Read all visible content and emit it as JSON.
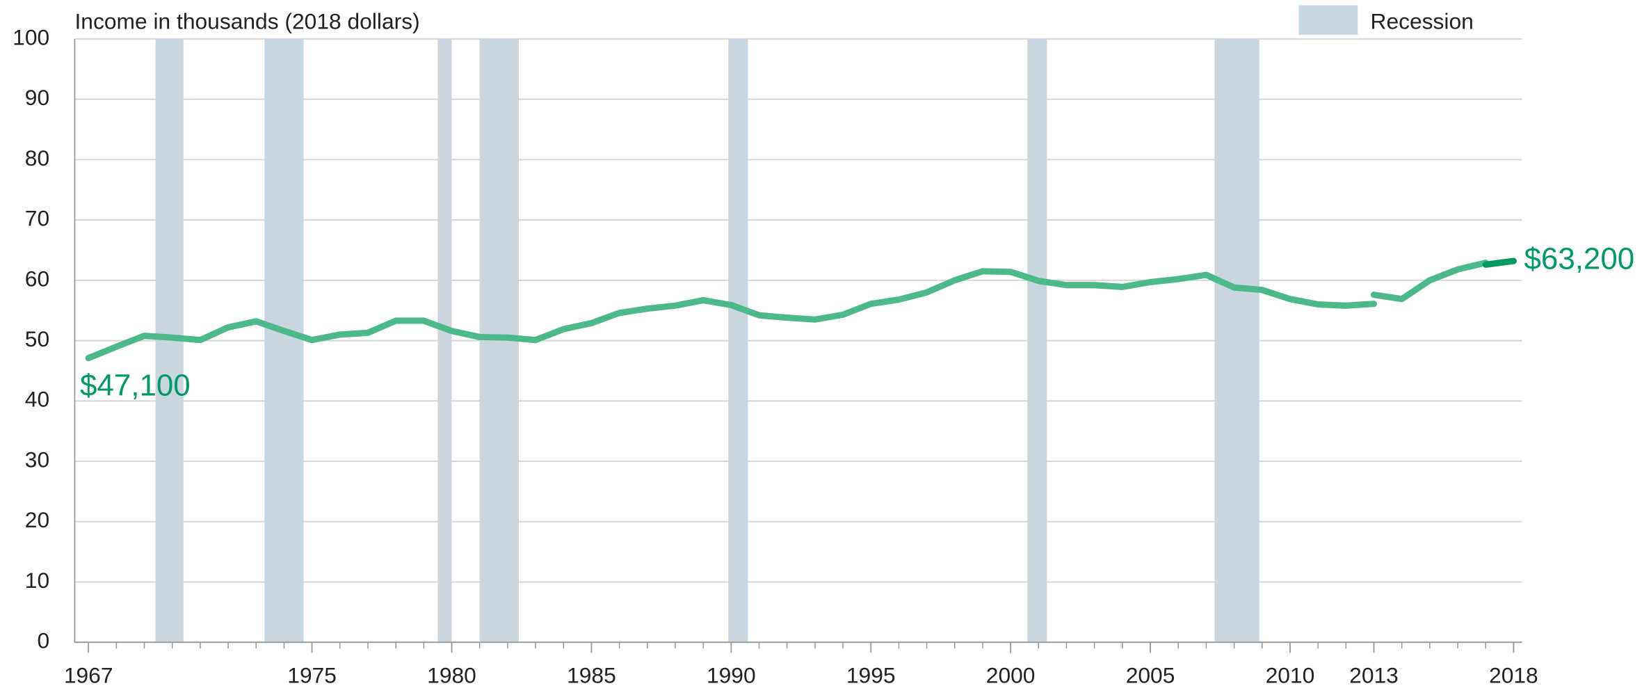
{
  "chart_data": {
    "type": "line",
    "ylabel": "Income in thousands (2018 dollars)",
    "xlim": [
      1966.51,
      2018.3
    ],
    "ylim": [
      0,
      100
    ],
    "yticks": [
      0,
      10,
      20,
      30,
      40,
      50,
      60,
      70,
      80,
      90,
      100
    ],
    "xticks": [
      1967,
      1975,
      1980,
      1985,
      1990,
      1995,
      2000,
      2005,
      2010,
      2013,
      2018
    ],
    "xminorticks": [
      1967,
      1968,
      1969,
      1970,
      1971,
      1972,
      1973,
      1974,
      1975,
      1976,
      1977,
      1978,
      1979,
      1980,
      1981,
      1982,
      1983,
      1984,
      1985,
      1986,
      1987,
      1988,
      1989,
      1990,
      1991,
      1992,
      1993,
      1994,
      1995,
      1996,
      1997,
      1998,
      1999,
      2000,
      2001,
      2002,
      2003,
      2004,
      2005,
      2006,
      2007,
      2008,
      2009,
      2010,
      2011,
      2012,
      2013,
      2014,
      2015,
      2016,
      2017,
      2018
    ],
    "grid": true,
    "recession_label": "Recession",
    "recession_color": "#c9d6df",
    "recessions": [
      {
        "start": 1969.4,
        "end": 1970.4
      },
      {
        "start": 1973.3,
        "end": 1974.7
      },
      {
        "start": 1979.5,
        "end": 1980.0
      },
      {
        "start": 1981.0,
        "end": 1982.4
      },
      {
        "start": 1989.9,
        "end": 1990.6
      },
      {
        "start": 2000.6,
        "end": 2001.3
      },
      {
        "start": 2007.3,
        "end": 2008.9
      }
    ],
    "series": [
      {
        "color": "#4db88a",
        "x": [
          1967,
          1968,
          1969,
          1970,
          1971,
          1972,
          1973,
          1974,
          1975,
          1976,
          1977,
          1978,
          1979,
          1980,
          1981,
          1982,
          1983,
          1984,
          1985,
          1986,
          1987,
          1988,
          1989,
          1990,
          1991,
          1992,
          1993,
          1994,
          1995,
          1996,
          1997,
          1998,
          1999,
          2000,
          2001,
          2002,
          2003,
          2004,
          2005,
          2006,
          2007,
          2008,
          2009,
          2010,
          2011,
          2012,
          2013
        ],
        "values": [
          47.1,
          49.0,
          50.8,
          50.5,
          50.1,
          52.2,
          53.2,
          51.6,
          50.1,
          51.0,
          51.3,
          53.3,
          53.3,
          51.6,
          50.6,
          50.5,
          50.1,
          51.9,
          52.9,
          54.6,
          55.3,
          55.8,
          56.7,
          55.9,
          54.2,
          53.8,
          53.5,
          54.3,
          56.1,
          56.8,
          58.0,
          60.0,
          61.5,
          61.4,
          59.9,
          59.2,
          59.2,
          58.9,
          59.7,
          60.2,
          60.9,
          58.8,
          58.4,
          56.9,
          56.0,
          55.8,
          56.1
        ]
      },
      {
        "color": "#4db88a",
        "x": [
          2013,
          2014,
          2015,
          2016,
          2017
        ],
        "values": [
          57.6,
          56.9,
          60.0,
          61.8,
          62.9
        ]
      },
      {
        "color": "#009a60",
        "x": [
          2017,
          2018
        ],
        "values": [
          62.6,
          63.2
        ]
      }
    ],
    "annotations": [
      {
        "text": "$47,100",
        "series": 0,
        "point": 0,
        "color": "#00996a"
      },
      {
        "text": "$63,200",
        "series": 2,
        "point": 1,
        "color": "#00996a"
      }
    ]
  }
}
